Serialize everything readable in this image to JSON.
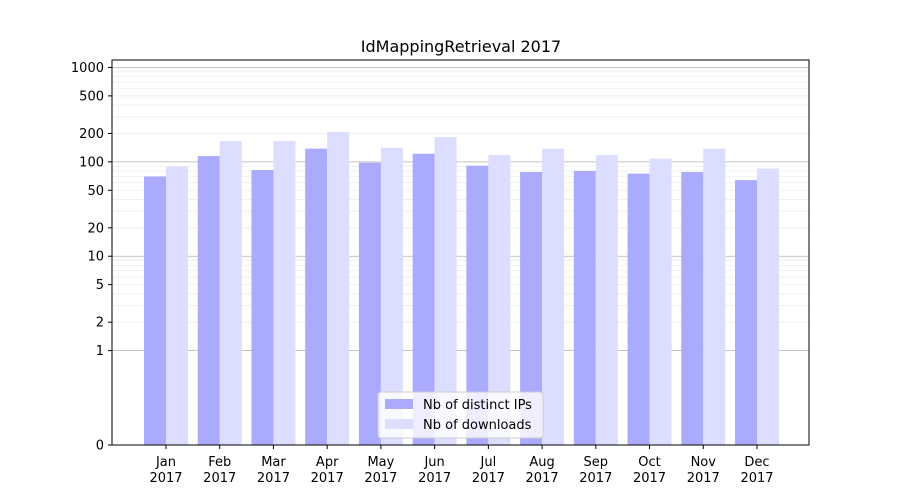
{
  "chart_data": {
    "type": "bar",
    "title": "IdMappingRetrieval 2017",
    "xlabel": "",
    "ylabel": "",
    "y_scale": "symlog",
    "ylim": [
      0,
      1200
    ],
    "y_ticks": [
      0,
      1,
      2,
      5,
      10,
      20,
      50,
      100,
      200,
      500,
      1000
    ],
    "y_tick_labels": [
      "0",
      "1",
      "2",
      "5",
      "10",
      "20",
      "50",
      "100",
      "200",
      "500",
      "1000"
    ],
    "grid": "major and minor horizontal",
    "legend_position": "bottom-center",
    "categories": [
      {
        "month": "Jan",
        "year": "2017"
      },
      {
        "month": "Feb",
        "year": "2017"
      },
      {
        "month": "Mar",
        "year": "2017"
      },
      {
        "month": "Apr",
        "year": "2017"
      },
      {
        "month": "May",
        "year": "2017"
      },
      {
        "month": "Jun",
        "year": "2017"
      },
      {
        "month": "Jul",
        "year": "2017"
      },
      {
        "month": "Aug",
        "year": "2017"
      },
      {
        "month": "Sep",
        "year": "2017"
      },
      {
        "month": "Oct",
        "year": "2017"
      },
      {
        "month": "Nov",
        "year": "2017"
      },
      {
        "month": "Dec",
        "year": "2017"
      }
    ],
    "series": [
      {
        "name": "Nb of distinct IPs",
        "color": "#aaaaff",
        "values": [
          70,
          115,
          82,
          138,
          98,
          122,
          91,
          78,
          80,
          75,
          78,
          64
        ]
      },
      {
        "name": "Nb of downloads",
        "color": "#ddddff",
        "values": [
          89,
          166,
          166,
          208,
          141,
          183,
          118,
          138,
          118,
          108,
          138,
          85
        ]
      }
    ]
  }
}
